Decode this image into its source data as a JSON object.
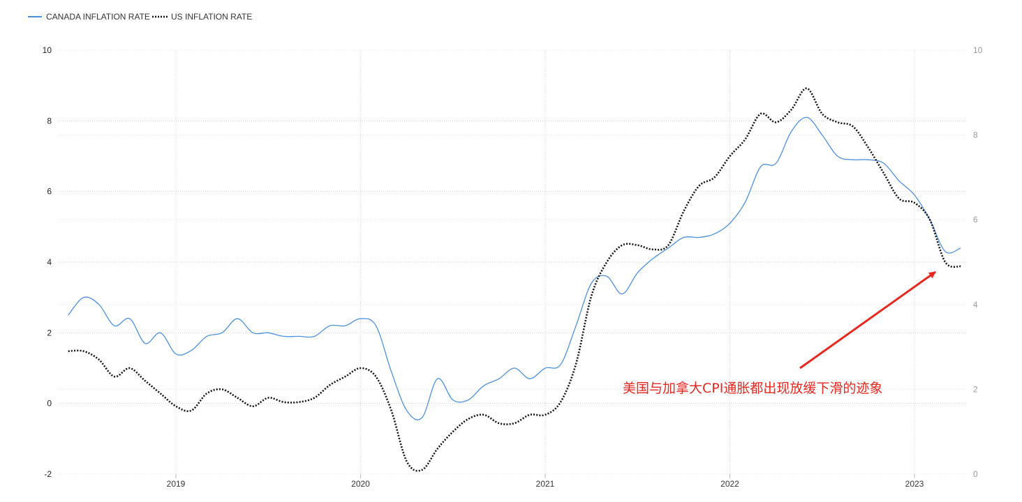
{
  "chart_data": {
    "type": "line",
    "title": "",
    "xlabel": "",
    "ylabel": "",
    "x_tick_labels": [
      "2019",
      "2020",
      "2021",
      "2022",
      "2023"
    ],
    "x_range": [
      "2018-06",
      "2023-03"
    ],
    "y_left": {
      "ticks": [
        -2,
        0,
        2,
        4,
        6,
        8,
        10
      ],
      "ylim": [
        -2,
        10
      ]
    },
    "y_right": {
      "ticks": [
        0,
        2,
        4,
        6,
        8,
        10
      ],
      "ylim": [
        0,
        10
      ]
    },
    "grid": true,
    "legend_position": "top-left",
    "series": [
      {
        "name": "CANADA INFLATION RATE",
        "axis": "left",
        "color": "#4a90e2",
        "style": "solid",
        "points": [
          [
            "2018-06",
            2.5
          ],
          [
            "2018-07",
            3.0
          ],
          [
            "2018-08",
            2.8
          ],
          [
            "2018-09",
            2.2
          ],
          [
            "2018-10",
            2.4
          ],
          [
            "2018-11",
            1.7
          ],
          [
            "2018-12",
            2.0
          ],
          [
            "2019-01",
            1.4
          ],
          [
            "2019-02",
            1.5
          ],
          [
            "2019-03",
            1.9
          ],
          [
            "2019-04",
            2.0
          ],
          [
            "2019-05",
            2.4
          ],
          [
            "2019-06",
            2.0
          ],
          [
            "2019-07",
            2.0
          ],
          [
            "2019-08",
            1.9
          ],
          [
            "2019-09",
            1.9
          ],
          [
            "2019-10",
            1.9
          ],
          [
            "2019-11",
            2.2
          ],
          [
            "2019-12",
            2.2
          ],
          [
            "2020-01",
            2.4
          ],
          [
            "2020-02",
            2.2
          ],
          [
            "2020-03",
            0.9
          ],
          [
            "2020-04",
            -0.2
          ],
          [
            "2020-05",
            -0.4
          ],
          [
            "2020-06",
            0.7
          ],
          [
            "2020-07",
            0.1
          ],
          [
            "2020-08",
            0.1
          ],
          [
            "2020-09",
            0.5
          ],
          [
            "2020-10",
            0.7
          ],
          [
            "2020-11",
            1.0
          ],
          [
            "2020-12",
            0.7
          ],
          [
            "2021-01",
            1.0
          ],
          [
            "2021-02",
            1.1
          ],
          [
            "2021-03",
            2.2
          ],
          [
            "2021-04",
            3.4
          ],
          [
            "2021-05",
            3.6
          ],
          [
            "2021-06",
            3.1
          ],
          [
            "2021-07",
            3.7
          ],
          [
            "2021-08",
            4.1
          ],
          [
            "2021-09",
            4.4
          ],
          [
            "2021-10",
            4.7
          ],
          [
            "2021-11",
            4.7
          ],
          [
            "2021-12",
            4.8
          ],
          [
            "2022-01",
            5.1
          ],
          [
            "2022-02",
            5.7
          ],
          [
            "2022-03",
            6.7
          ],
          [
            "2022-04",
            6.8
          ],
          [
            "2022-05",
            7.7
          ],
          [
            "2022-06",
            8.1
          ],
          [
            "2022-07",
            7.6
          ],
          [
            "2022-08",
            7.0
          ],
          [
            "2022-09",
            6.9
          ],
          [
            "2022-10",
            6.9
          ],
          [
            "2022-11",
            6.8
          ],
          [
            "2022-12",
            6.3
          ],
          [
            "2023-01",
            5.9
          ],
          [
            "2023-02",
            5.2
          ],
          [
            "2023-03",
            4.3
          ],
          [
            "2023-04",
            4.4
          ]
        ]
      },
      {
        "name": "US INFLATION RATE",
        "axis": "right",
        "color": "#111111",
        "style": "dotted",
        "points": [
          [
            "2018-06",
            2.9
          ],
          [
            "2018-07",
            2.9
          ],
          [
            "2018-08",
            2.7
          ],
          [
            "2018-09",
            2.3
          ],
          [
            "2018-10",
            2.5
          ],
          [
            "2018-11",
            2.2
          ],
          [
            "2018-12",
            1.9
          ],
          [
            "2019-01",
            1.6
          ],
          [
            "2019-02",
            1.5
          ],
          [
            "2019-03",
            1.9
          ],
          [
            "2019-04",
            2.0
          ],
          [
            "2019-05",
            1.8
          ],
          [
            "2019-06",
            1.6
          ],
          [
            "2019-07",
            1.8
          ],
          [
            "2019-08",
            1.7
          ],
          [
            "2019-09",
            1.7
          ],
          [
            "2019-10",
            1.8
          ],
          [
            "2019-11",
            2.1
          ],
          [
            "2019-12",
            2.3
          ],
          [
            "2020-01",
            2.5
          ],
          [
            "2020-02",
            2.3
          ],
          [
            "2020-03",
            1.5
          ],
          [
            "2020-04",
            0.3
          ],
          [
            "2020-05",
            0.1
          ],
          [
            "2020-06",
            0.6
          ],
          [
            "2020-07",
            1.0
          ],
          [
            "2020-08",
            1.3
          ],
          [
            "2020-09",
            1.4
          ],
          [
            "2020-10",
            1.2
          ],
          [
            "2020-11",
            1.2
          ],
          [
            "2020-12",
            1.4
          ],
          [
            "2021-01",
            1.4
          ],
          [
            "2021-02",
            1.7
          ],
          [
            "2021-03",
            2.6
          ],
          [
            "2021-04",
            4.2
          ],
          [
            "2021-05",
            5.0
          ],
          [
            "2021-06",
            5.4
          ],
          [
            "2021-07",
            5.4
          ],
          [
            "2021-08",
            5.3
          ],
          [
            "2021-09",
            5.4
          ],
          [
            "2021-10",
            6.2
          ],
          [
            "2021-11",
            6.8
          ],
          [
            "2021-12",
            7.0
          ],
          [
            "2022-01",
            7.5
          ],
          [
            "2022-02",
            7.9
          ],
          [
            "2022-03",
            8.5
          ],
          [
            "2022-04",
            8.3
          ],
          [
            "2022-05",
            8.6
          ],
          [
            "2022-06",
            9.1
          ],
          [
            "2022-07",
            8.5
          ],
          [
            "2022-08",
            8.3
          ],
          [
            "2022-09",
            8.2
          ],
          [
            "2022-10",
            7.7
          ],
          [
            "2022-11",
            7.1
          ],
          [
            "2022-12",
            6.5
          ],
          [
            "2023-01",
            6.4
          ],
          [
            "2023-02",
            6.0
          ],
          [
            "2023-03",
            5.0
          ],
          [
            "2023-04",
            4.9
          ]
        ]
      }
    ],
    "annotation": {
      "text": "美国与加拿大CPI通胀都出现放缓下滑的迹象",
      "color": "#e8271f"
    }
  }
}
